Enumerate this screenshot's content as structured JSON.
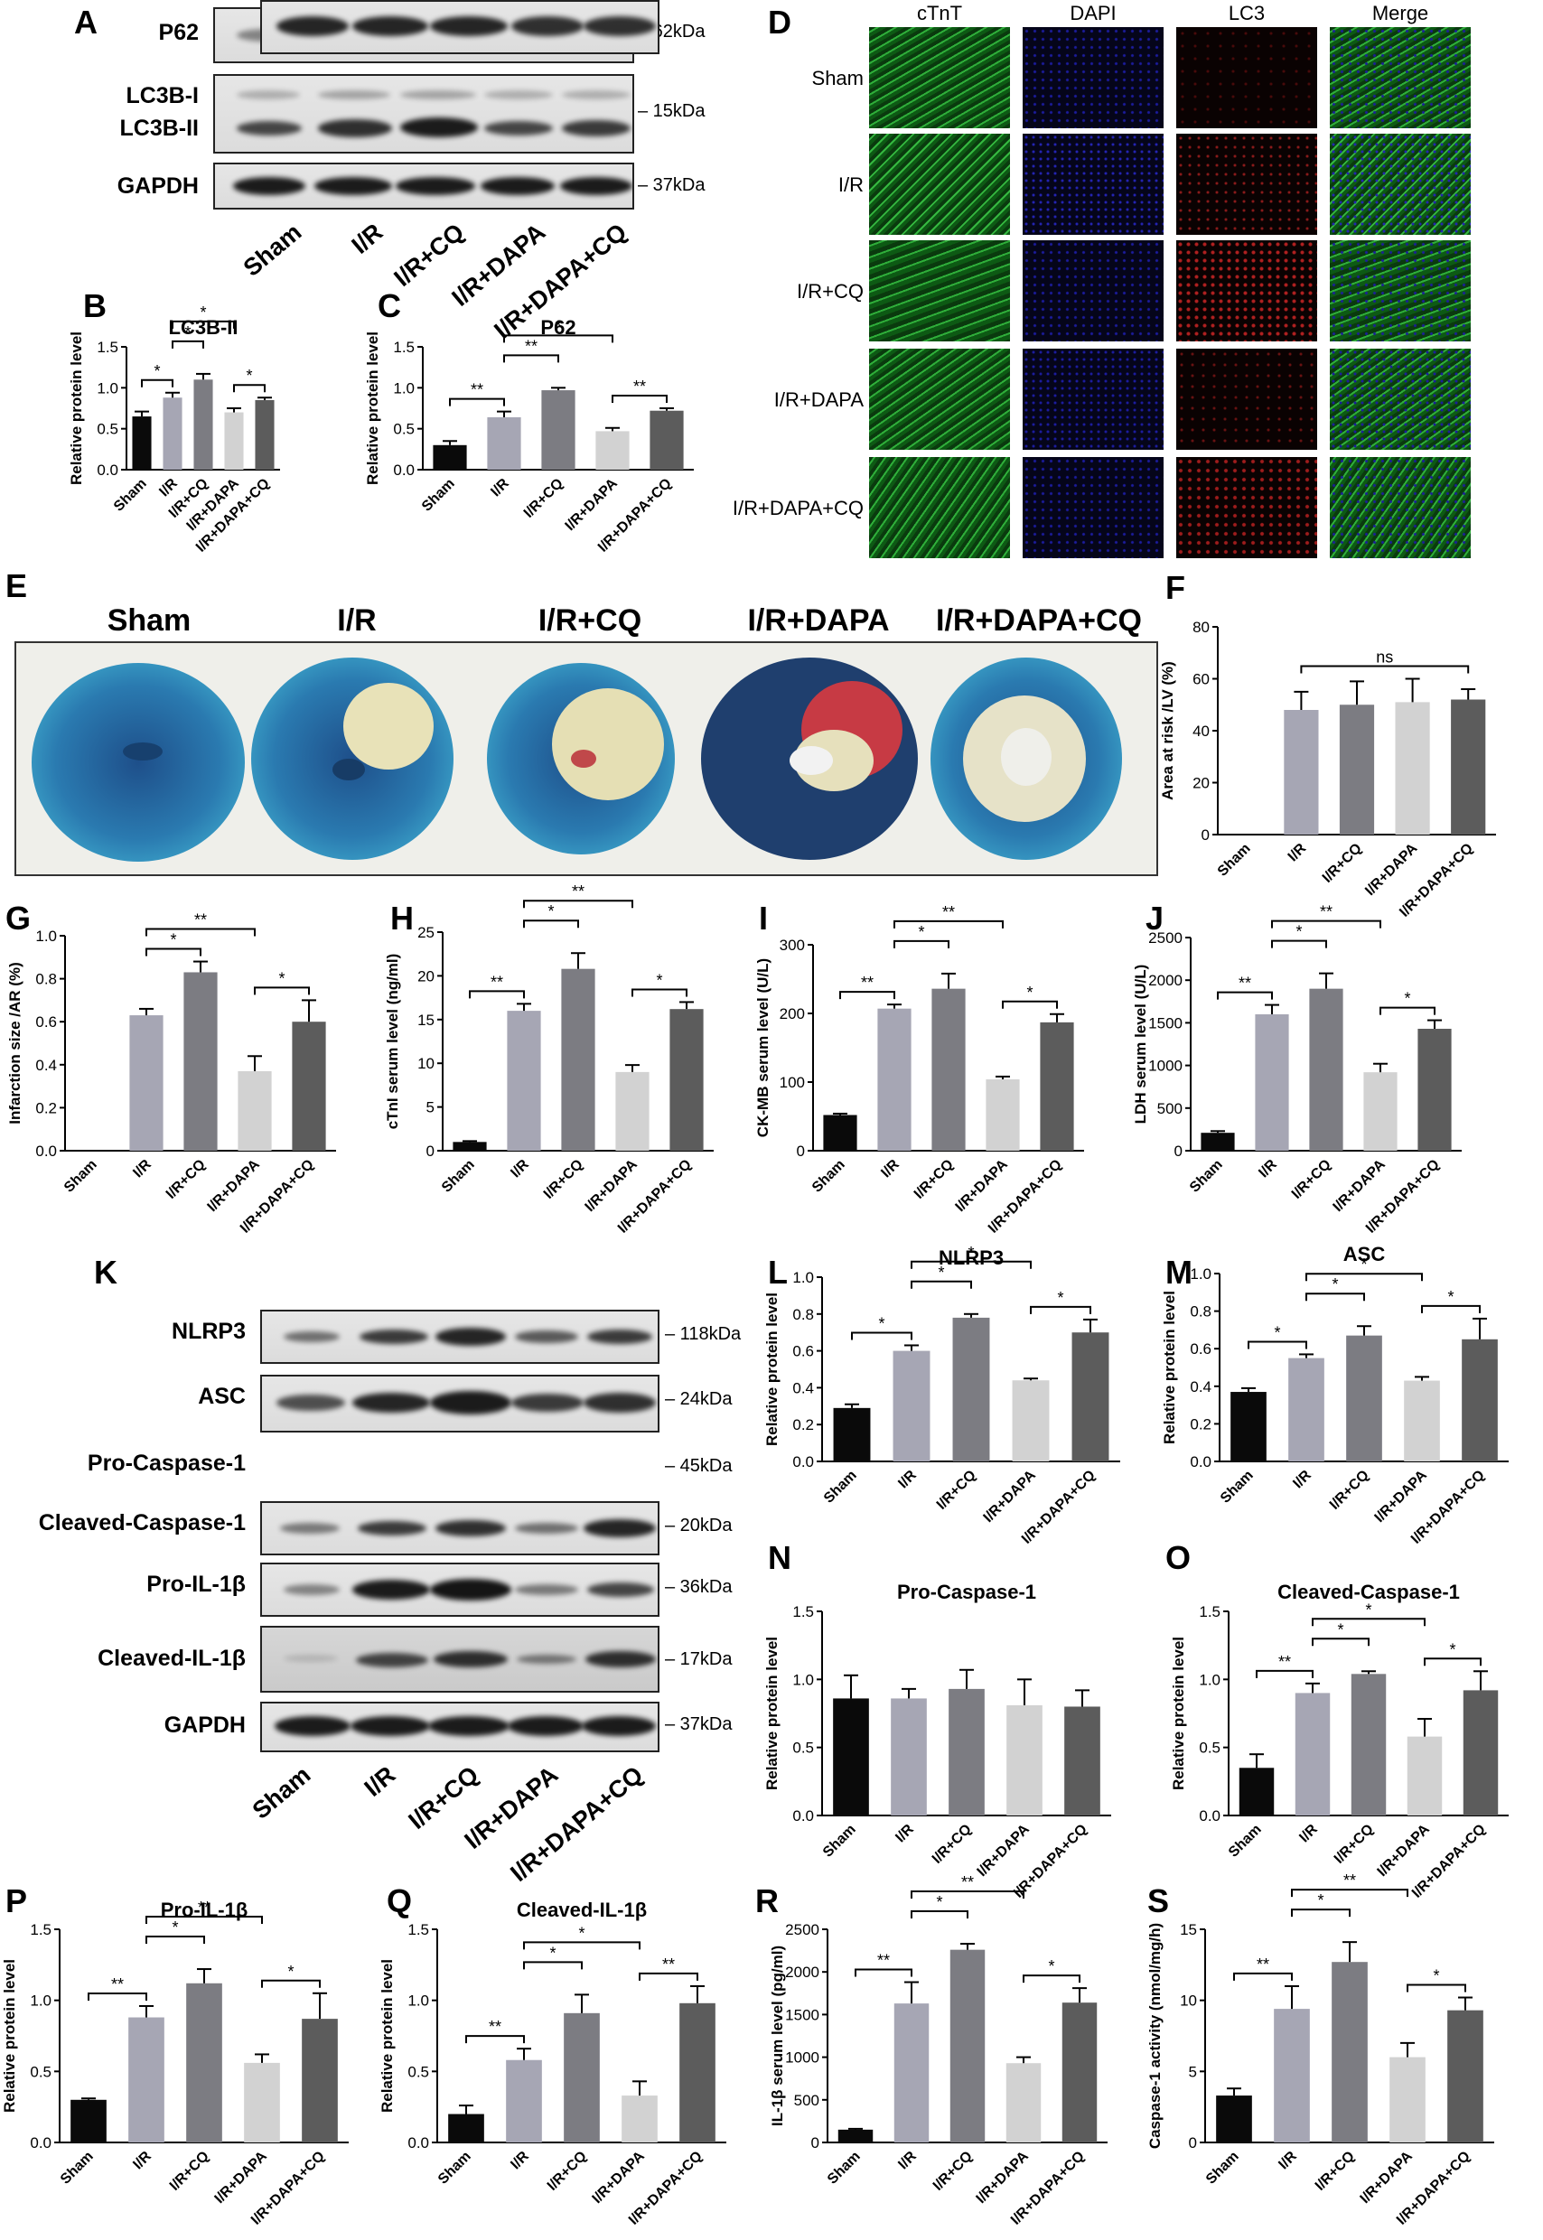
{
  "panel_letters": [
    "A",
    "B",
    "C",
    "D",
    "E",
    "F",
    "G",
    "H",
    "I",
    "J",
    "K",
    "L",
    "M",
    "N",
    "O",
    "P",
    "Q",
    "R",
    "S"
  ],
  "groups": [
    "Sham",
    "I/R",
    "I/R+CQ",
    "I/R+DAPA",
    "I/R+DAPA+CQ"
  ],
  "group_colors": [
    "#0a0a0a",
    "#a6a6b4",
    "#7c7c82",
    "#d2d2d2",
    "#5c5c5c"
  ],
  "blot_A": {
    "rows": [
      {
        "label": "P62",
        "kda": "– 62kDa"
      },
      {
        "label": "LC3B-I",
        "kda": "– 15kDa"
      },
      {
        "label": "LC3B-II",
        "kda": ""
      },
      {
        "label": "GAPDH",
        "kda": "– 37kDa"
      }
    ],
    "lanes": [
      "Sham",
      "I/R",
      "I/R+CQ",
      "I/R+DAPA",
      "I/R+DAPA+CQ"
    ]
  },
  "blot_K": {
    "rows": [
      {
        "label": "NLRP3",
        "kda": "– 118kDa"
      },
      {
        "label": "ASC",
        "kda": "– 24kDa"
      },
      {
        "label": "Pro-Caspase-1",
        "kda": "– 45kDa"
      },
      {
        "label": "Cleaved-Caspase-1",
        "kda": "– 20kDa"
      },
      {
        "label": "Pro-IL-1β",
        "kda": "– 36kDa"
      },
      {
        "label": "Cleaved-IL-1β",
        "kda": "– 17kDa"
      },
      {
        "label": "GAPDH",
        "kda": "– 37kDa"
      }
    ],
    "lanes": [
      "Sham",
      "I/R",
      "I/R+CQ",
      "I/R+DAPA",
      "I/R+DAPA+CQ"
    ]
  },
  "panel_D": {
    "columns": [
      "cTnT",
      "DAPI",
      "LC3",
      "Merge"
    ],
    "rows": [
      "Sham",
      "I/R",
      "I/R+CQ",
      "I/R+DAPA",
      "I/R+DAPA+CQ"
    ],
    "colors": {
      "cTnT": "#1f8f2a",
      "DAPI": "#1a1a8c",
      "LC3": "#8c1a1a"
    }
  },
  "panel_E": {
    "labels": [
      "Sham",
      "I/R",
      "I/R+CQ",
      "I/R+DAPA",
      "I/R+DAPA+CQ"
    ]
  },
  "chart_data": [
    {
      "panel": "B",
      "type": "bar",
      "title": "LC3B-II",
      "ylabel": "Relative protein level",
      "categories": [
        "Sham",
        "I/R",
        "I/R+CQ",
        "I/R+DAPA",
        "I/R+DAPA+CQ"
      ],
      "values": [
        0.65,
        0.88,
        1.1,
        0.7,
        0.85
      ],
      "errors": [
        0.06,
        0.06,
        0.07,
        0.05,
        0.03
      ],
      "ylim": [
        0,
        1.5
      ],
      "yticks": [
        "0.0",
        "0.5",
        "1.0",
        "1.5"
      ],
      "sig": [
        {
          "from": 0,
          "to": 1,
          "label": "*",
          "level": 0
        },
        {
          "from": 1,
          "to": 2,
          "label": "*",
          "level": 1
        },
        {
          "from": 1,
          "to": 3,
          "label": "*",
          "level": 2
        },
        {
          "from": 3,
          "to": 4,
          "label": "*",
          "level": 0
        }
      ]
    },
    {
      "panel": "C",
      "type": "bar",
      "title": "P62",
      "ylabel": "Relative protein level",
      "categories": [
        "Sham",
        "I/R",
        "I/R+CQ",
        "I/R+DAPA",
        "I/R+DAPA+CQ"
      ],
      "values": [
        0.3,
        0.64,
        0.97,
        0.47,
        0.72
      ],
      "errors": [
        0.05,
        0.07,
        0.03,
        0.04,
        0.03
      ],
      "ylim": [
        0,
        1.5
      ],
      "yticks": [
        "0.0",
        "0.5",
        "1.0",
        "1.5"
      ],
      "sig": [
        {
          "from": 0,
          "to": 1,
          "label": "**",
          "level": 0
        },
        {
          "from": 1,
          "to": 2,
          "label": "**",
          "level": 1
        },
        {
          "from": 1,
          "to": 3,
          "label": "*",
          "level": 2
        },
        {
          "from": 3,
          "to": 4,
          "label": "**",
          "level": 0
        }
      ]
    },
    {
      "panel": "F",
      "type": "bar",
      "title": "",
      "ylabel": "Area at risk /LV (%)",
      "categories": [
        "Sham",
        "I/R",
        "I/R+CQ",
        "I/R+DAPA",
        "I/R+DAPA+CQ"
      ],
      "values": [
        0,
        48,
        50,
        51,
        52
      ],
      "errors": [
        0,
        7,
        9,
        9,
        4
      ],
      "ylim": [
        0,
        80
      ],
      "yticks": [
        "0",
        "20",
        "40",
        "60",
        "80"
      ],
      "sig": [
        {
          "from": 1,
          "to": 4,
          "label": "ns",
          "level": 0
        }
      ]
    },
    {
      "panel": "G",
      "type": "bar",
      "title": "",
      "ylabel": "Infarction size /AR (%)",
      "categories": [
        "Sham",
        "I/R",
        "I/R+CQ",
        "I/R+DAPA",
        "I/R+DAPA+CQ"
      ],
      "values": [
        0,
        0.63,
        0.83,
        0.37,
        0.6
      ],
      "errors": [
        0,
        0.03,
        0.05,
        0.07,
        0.1
      ],
      "ylim": [
        0,
        1.0
      ],
      "yticks": [
        "0.0",
        "0.2",
        "0.4",
        "0.6",
        "0.8",
        "1.0"
      ],
      "sig": [
        {
          "from": 1,
          "to": 2,
          "label": "*",
          "level": 0
        },
        {
          "from": 1,
          "to": 3,
          "label": "**",
          "level": 1
        },
        {
          "from": 3,
          "to": 4,
          "label": "*",
          "level": 0
        }
      ]
    },
    {
      "panel": "H",
      "type": "bar",
      "title": "",
      "ylabel": "cTnI serum level (ng/ml)",
      "categories": [
        "Sham",
        "I/R",
        "I/R+CQ",
        "I/R+DAPA",
        "I/R+DAPA+CQ"
      ],
      "values": [
        1,
        16,
        20.8,
        9,
        16.2
      ],
      "errors": [
        0.1,
        0.8,
        1.8,
        0.8,
        0.8
      ],
      "ylim": [
        0,
        25
      ],
      "yticks": [
        "0",
        "5",
        "10",
        "15",
        "20",
        "25"
      ],
      "sig": [
        {
          "from": 0,
          "to": 1,
          "label": "**",
          "level": 0
        },
        {
          "from": 1,
          "to": 2,
          "label": "*",
          "level": 1
        },
        {
          "from": 1,
          "to": 3,
          "label": "**",
          "level": 2
        },
        {
          "from": 3,
          "to": 4,
          "label": "*",
          "level": 0
        }
      ]
    },
    {
      "panel": "I",
      "type": "bar",
      "title": "",
      "ylabel": "CK-MB serum level (U/L)",
      "categories": [
        "Sham",
        "I/R",
        "I/R+CQ",
        "I/R+DAPA",
        "I/R+DAPA+CQ"
      ],
      "values": [
        52,
        207,
        236,
        104,
        187
      ],
      "errors": [
        2,
        6,
        22,
        4,
        12
      ],
      "ylim": [
        0,
        300
      ],
      "yticks": [
        "0",
        "100",
        "200",
        "300"
      ],
      "sig": [
        {
          "from": 0,
          "to": 1,
          "label": "**",
          "level": 0
        },
        {
          "from": 1,
          "to": 2,
          "label": "*",
          "level": 1
        },
        {
          "from": 1,
          "to": 3,
          "label": "**",
          "level": 2
        },
        {
          "from": 3,
          "to": 4,
          "label": "*",
          "level": 0
        }
      ]
    },
    {
      "panel": "J",
      "type": "bar",
      "title": "",
      "ylabel": "LDH serum level (U/L)",
      "categories": [
        "Sham",
        "I/R",
        "I/R+CQ",
        "I/R+DAPA",
        "I/R+DAPA+CQ"
      ],
      "values": [
        210,
        1600,
        1900,
        920,
        1430
      ],
      "errors": [
        20,
        110,
        180,
        100,
        100
      ],
      "ylim": [
        0,
        2500
      ],
      "yticks": [
        "0",
        "500",
        "1000",
        "1500",
        "2000",
        "2500"
      ],
      "sig": [
        {
          "from": 0,
          "to": 1,
          "label": "**",
          "level": 0
        },
        {
          "from": 1,
          "to": 2,
          "label": "*",
          "level": 1
        },
        {
          "from": 1,
          "to": 3,
          "label": "**",
          "level": 2
        },
        {
          "from": 3,
          "to": 4,
          "label": "*",
          "level": 0
        }
      ]
    },
    {
      "panel": "L",
      "type": "bar",
      "title": "NLRP3",
      "ylabel": "Relative protein level",
      "categories": [
        "Sham",
        "I/R",
        "I/R+CQ",
        "I/R+DAPA",
        "I/R+DAPA+CQ"
      ],
      "values": [
        0.29,
        0.6,
        0.78,
        0.44,
        0.7
      ],
      "errors": [
        0.02,
        0.03,
        0.02,
        0.01,
        0.07
      ],
      "ylim": [
        0,
        1.0
      ],
      "yticks": [
        "0.0",
        "0.2",
        "0.4",
        "0.6",
        "0.8",
        "1.0"
      ],
      "sig": [
        {
          "from": 0,
          "to": 1,
          "label": "*",
          "level": 0
        },
        {
          "from": 1,
          "to": 2,
          "label": "*",
          "level": 1
        },
        {
          "from": 1,
          "to": 3,
          "label": "*",
          "level": 2
        },
        {
          "from": 3,
          "to": 4,
          "label": "*",
          "level": 0
        }
      ]
    },
    {
      "panel": "M",
      "type": "bar",
      "title": "ASC",
      "ylabel": "Relative protein level",
      "categories": [
        "Sham",
        "I/R",
        "I/R+CQ",
        "I/R+DAPA",
        "I/R+DAPA+CQ"
      ],
      "values": [
        0.37,
        0.55,
        0.67,
        0.43,
        0.65
      ],
      "errors": [
        0.02,
        0.02,
        0.05,
        0.02,
        0.11
      ],
      "ylim": [
        0,
        1.0
      ],
      "yticks": [
        "0.0",
        "0.2",
        "0.4",
        "0.6",
        "0.8",
        "1.0"
      ],
      "sig": [
        {
          "from": 0,
          "to": 1,
          "label": "*",
          "level": 0
        },
        {
          "from": 1,
          "to": 2,
          "label": "*",
          "level": 1
        },
        {
          "from": 1,
          "to": 3,
          "label": "*",
          "level": 2
        },
        {
          "from": 3,
          "to": 4,
          "label": "*",
          "level": 0
        }
      ]
    },
    {
      "panel": "N",
      "type": "bar",
      "title": "Pro-Caspase-1",
      "ylabel": "Relative protein level",
      "categories": [
        "Sham",
        "I/R",
        "I/R+CQ",
        "I/R+DAPA",
        "I/R+DAPA+CQ"
      ],
      "values": [
        0.86,
        0.86,
        0.93,
        0.81,
        0.8
      ],
      "errors": [
        0.17,
        0.07,
        0.14,
        0.19,
        0.12
      ],
      "ylim": [
        0,
        1.5
      ],
      "yticks": [
        "0.0",
        "0.5",
        "1.0",
        "1.5"
      ],
      "sig": []
    },
    {
      "panel": "O",
      "type": "bar",
      "title": "Cleaved-Caspase-1",
      "ylabel": "Relative protein level",
      "categories": [
        "Sham",
        "I/R",
        "I/R+CQ",
        "I/R+DAPA",
        "I/R+DAPA+CQ"
      ],
      "values": [
        0.35,
        0.9,
        1.04,
        0.58,
        0.92
      ],
      "errors": [
        0.1,
        0.07,
        0.02,
        0.13,
        0.14
      ],
      "ylim": [
        0,
        1.5
      ],
      "yticks": [
        "0.0",
        "0.5",
        "1.0",
        "1.5"
      ],
      "sig": [
        {
          "from": 0,
          "to": 1,
          "label": "**",
          "level": 0
        },
        {
          "from": 1,
          "to": 2,
          "label": "*",
          "level": 1
        },
        {
          "from": 1,
          "to": 3,
          "label": "*",
          "level": 2
        },
        {
          "from": 3,
          "to": 4,
          "label": "*",
          "level": 0
        }
      ]
    },
    {
      "panel": "P",
      "type": "bar",
      "title": "Pro-IL-1β",
      "ylabel": "Relative protein level",
      "categories": [
        "Sham",
        "I/R",
        "I/R+CQ",
        "I/R+DAPA",
        "I/R+DAPA+CQ"
      ],
      "values": [
        0.3,
        0.88,
        1.12,
        0.56,
        0.87
      ],
      "errors": [
        0.01,
        0.08,
        0.1,
        0.06,
        0.18
      ],
      "ylim": [
        0,
        1.5
      ],
      "yticks": [
        "0.0",
        "0.5",
        "1.0",
        "1.5"
      ],
      "sig": [
        {
          "from": 0,
          "to": 1,
          "label": "**",
          "level": 0
        },
        {
          "from": 1,
          "to": 2,
          "label": "*",
          "level": 1
        },
        {
          "from": 1,
          "to": 3,
          "label": "**",
          "level": 2
        },
        {
          "from": 3,
          "to": 4,
          "label": "*",
          "level": 0
        }
      ]
    },
    {
      "panel": "Q",
      "type": "bar",
      "title": "Cleaved-IL-1β",
      "ylabel": "Relative protein level",
      "categories": [
        "Sham",
        "I/R",
        "I/R+CQ",
        "I/R+DAPA",
        "I/R+DAPA+CQ"
      ],
      "values": [
        0.2,
        0.58,
        0.91,
        0.33,
        0.98
      ],
      "errors": [
        0.06,
        0.08,
        0.13,
        0.1,
        0.12
      ],
      "ylim": [
        0,
        1.5
      ],
      "yticks": [
        "0.0",
        "0.5",
        "1.0",
        "1.5"
      ],
      "sig": [
        {
          "from": 0,
          "to": 1,
          "label": "**",
          "level": 0
        },
        {
          "from": 1,
          "to": 2,
          "label": "*",
          "level": 1
        },
        {
          "from": 1,
          "to": 3,
          "label": "*",
          "level": 2
        },
        {
          "from": 3,
          "to": 4,
          "label": "**",
          "level": 0
        }
      ]
    },
    {
      "panel": "R",
      "type": "bar",
      "title": "",
      "ylabel": "IL-1β serum level (pg/ml)",
      "categories": [
        "Sham",
        "I/R",
        "I/R+CQ",
        "I/R+DAPA",
        "I/R+DAPA+CQ"
      ],
      "values": [
        150,
        1630,
        2260,
        930,
        1640
      ],
      "errors": [
        10,
        250,
        70,
        70,
        170
      ],
      "ylim": [
        0,
        2500
      ],
      "yticks": [
        "0",
        "500",
        "1000",
        "1500",
        "2000",
        "2500"
      ],
      "sig": [
        {
          "from": 0,
          "to": 1,
          "label": "**",
          "level": 0
        },
        {
          "from": 1,
          "to": 2,
          "label": "*",
          "level": 1
        },
        {
          "from": 1,
          "to": 3,
          "label": "**",
          "level": 2
        },
        {
          "from": 3,
          "to": 4,
          "label": "*",
          "level": 0
        }
      ]
    },
    {
      "panel": "S",
      "type": "bar",
      "title": "",
      "ylabel": "Caspase-1 activity (nmol/mg/h)",
      "categories": [
        "Sham",
        "I/R",
        "I/R+CQ",
        "I/R+DAPA",
        "I/R+DAPA+CQ"
      ],
      "values": [
        3.3,
        9.4,
        12.7,
        6.0,
        9.3
      ],
      "errors": [
        0.5,
        1.6,
        1.4,
        1.0,
        0.9
      ],
      "ylim": [
        0,
        15
      ],
      "yticks": [
        "0",
        "5",
        "10",
        "15"
      ],
      "sig": [
        {
          "from": 0,
          "to": 1,
          "label": "**",
          "level": 0
        },
        {
          "from": 1,
          "to": 2,
          "label": "*",
          "level": 1
        },
        {
          "from": 1,
          "to": 3,
          "label": "**",
          "level": 2
        },
        {
          "from": 3,
          "to": 4,
          "label": "*",
          "level": 0
        }
      ]
    }
  ]
}
